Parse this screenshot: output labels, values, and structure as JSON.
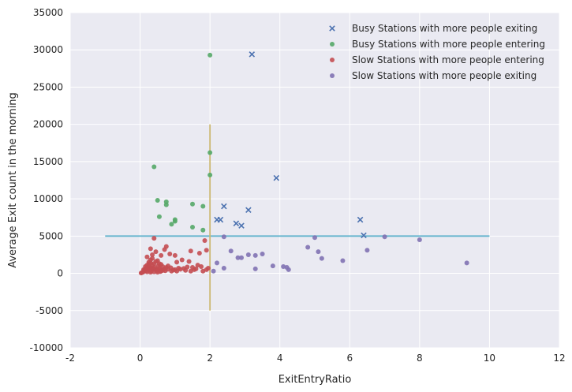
{
  "chart_data": {
    "type": "scatter",
    "title": "",
    "xlabel": "ExitEntryRatio",
    "ylabel": "Average Exit count in the morning",
    "xlim": [
      -2,
      12
    ],
    "ylim": [
      -10000,
      35000
    ],
    "x_ticks": [
      -2,
      0,
      2,
      4,
      6,
      8,
      10,
      12
    ],
    "y_ticks": [
      -10000,
      -5000,
      0,
      5000,
      10000,
      15000,
      20000,
      25000,
      30000,
      35000
    ],
    "grid": true,
    "legend_position": "top-right",
    "reference_lines": [
      {
        "orientation": "horizontal",
        "y": 5000,
        "x_range": [
          -1,
          10
        ],
        "color": "#64b5cd"
      },
      {
        "orientation": "vertical",
        "x": 2,
        "y_range": [
          -5000,
          20000
        ],
        "color": "#ccb974"
      }
    ],
    "series": [
      {
        "name": "Busy Stations with more people exiting",
        "marker": "x",
        "color": "#4c72b0",
        "points": [
          [
            3.2,
            29400
          ],
          [
            3.9,
            12800
          ],
          [
            2.4,
            9000
          ],
          [
            3.1,
            8500
          ],
          [
            2.2,
            7200
          ],
          [
            2.3,
            7200
          ],
          [
            2.75,
            6700
          ],
          [
            2.9,
            6400
          ],
          [
            6.3,
            7200
          ],
          [
            6.4,
            5100
          ]
        ]
      },
      {
        "name": "Busy Stations with more people entering",
        "marker": "o",
        "color": "#55a868",
        "points": [
          [
            2.0,
            29300
          ],
          [
            2.0,
            16200
          ],
          [
            2.0,
            13200
          ],
          [
            0.4,
            14300
          ],
          [
            0.5,
            9800
          ],
          [
            0.75,
            9600
          ],
          [
            0.75,
            9200
          ],
          [
            1.5,
            9300
          ],
          [
            1.8,
            9000
          ],
          [
            0.55,
            7600
          ],
          [
            1.0,
            7200
          ],
          [
            1.0,
            7000
          ],
          [
            0.9,
            6600
          ],
          [
            1.5,
            6200
          ],
          [
            1.8,
            5800
          ]
        ]
      },
      {
        "name": "Slow Stations with more people entering",
        "marker": "o",
        "color": "#c44e52",
        "points": [
          [
            0.4,
            4700
          ],
          [
            1.85,
            4400
          ],
          [
            1.9,
            3100
          ],
          [
            0.75,
            3600
          ],
          [
            0.7,
            3200
          ],
          [
            1.45,
            3000
          ],
          [
            0.3,
            3300
          ],
          [
            0.85,
            2600
          ],
          [
            0.45,
            2900
          ],
          [
            1.7,
            2700
          ],
          [
            0.6,
            2400
          ],
          [
            1.0,
            2400
          ],
          [
            0.2,
            2200
          ],
          [
            0.35,
            2000
          ],
          [
            1.2,
            1800
          ],
          [
            1.4,
            1600
          ],
          [
            0.5,
            1700
          ],
          [
            0.25,
            1500
          ],
          [
            0.3,
            1400
          ],
          [
            0.4,
            1300
          ],
          [
            0.6,
            1200
          ],
          [
            0.8,
            1000
          ],
          [
            0.2,
            1100
          ],
          [
            0.25,
            900
          ],
          [
            0.3,
            800
          ],
          [
            0.35,
            700
          ],
          [
            0.4,
            600
          ],
          [
            0.45,
            500
          ],
          [
            0.5,
            450
          ],
          [
            0.55,
            700
          ],
          [
            0.6,
            500
          ],
          [
            0.65,
            400
          ],
          [
            0.7,
            600
          ],
          [
            0.75,
            800
          ],
          [
            0.9,
            300
          ],
          [
            1.0,
            500
          ],
          [
            1.1,
            700
          ],
          [
            1.3,
            400
          ],
          [
            1.5,
            800
          ],
          [
            1.6,
            600
          ],
          [
            1.75,
            900
          ],
          [
            1.9,
            500
          ],
          [
            0.15,
            600
          ],
          [
            0.12,
            400
          ],
          [
            0.1,
            250
          ],
          [
            0.08,
            150
          ],
          [
            0.05,
            100
          ],
          [
            0.03,
            50
          ],
          [
            0.1,
            500
          ],
          [
            0.18,
            350
          ],
          [
            0.2,
            200
          ],
          [
            0.22,
            650
          ],
          [
            0.28,
            450
          ],
          [
            0.32,
            300
          ],
          [
            0.38,
            550
          ],
          [
            0.42,
            800
          ],
          [
            0.48,
            350
          ],
          [
            0.52,
            1000
          ],
          [
            0.58,
            250
          ],
          [
            0.65,
            900
          ],
          [
            0.72,
            350
          ],
          [
            0.8,
            550
          ],
          [
            0.88,
            750
          ],
          [
            0.95,
            450
          ],
          [
            1.05,
            300
          ],
          [
            1.15,
            550
          ],
          [
            1.25,
            650
          ],
          [
            1.35,
            850
          ],
          [
            1.45,
            300
          ],
          [
            1.55,
            500
          ],
          [
            1.65,
            1100
          ],
          [
            1.8,
            300
          ],
          [
            1.95,
            700
          ],
          [
            0.3,
            1800
          ],
          [
            0.35,
            1100
          ],
          [
            0.45,
            1600
          ],
          [
            0.55,
            1300
          ],
          [
            0.25,
            1250
          ],
          [
            0.15,
            900
          ],
          [
            0.2,
            700
          ],
          [
            0.3,
            150
          ],
          [
            0.4,
            200
          ],
          [
            0.5,
            150
          ],
          [
            0.6,
            300
          ],
          [
            0.35,
            2500
          ],
          [
            1.05,
            1500
          ]
        ]
      },
      {
        "name": "Slow Stations with more people exiting",
        "marker": "o",
        "color": "#8172b2",
        "points": [
          [
            2.4,
            4900
          ],
          [
            5.0,
            4800
          ],
          [
            7.0,
            4900
          ],
          [
            8.0,
            4500
          ],
          [
            6.5,
            3100
          ],
          [
            4.8,
            3500
          ],
          [
            2.6,
            3000
          ],
          [
            5.1,
            2900
          ],
          [
            3.1,
            2500
          ],
          [
            3.5,
            2600
          ],
          [
            3.3,
            2400
          ],
          [
            2.8,
            2100
          ],
          [
            2.9,
            2100
          ],
          [
            5.2,
            2000
          ],
          [
            5.8,
            1700
          ],
          [
            2.2,
            1400
          ],
          [
            9.35,
            1400
          ],
          [
            3.8,
            1000
          ],
          [
            4.1,
            900
          ],
          [
            4.2,
            800
          ],
          [
            3.3,
            600
          ],
          [
            2.4,
            700
          ],
          [
            4.25,
            500
          ],
          [
            2.1,
            300
          ]
        ]
      }
    ]
  }
}
